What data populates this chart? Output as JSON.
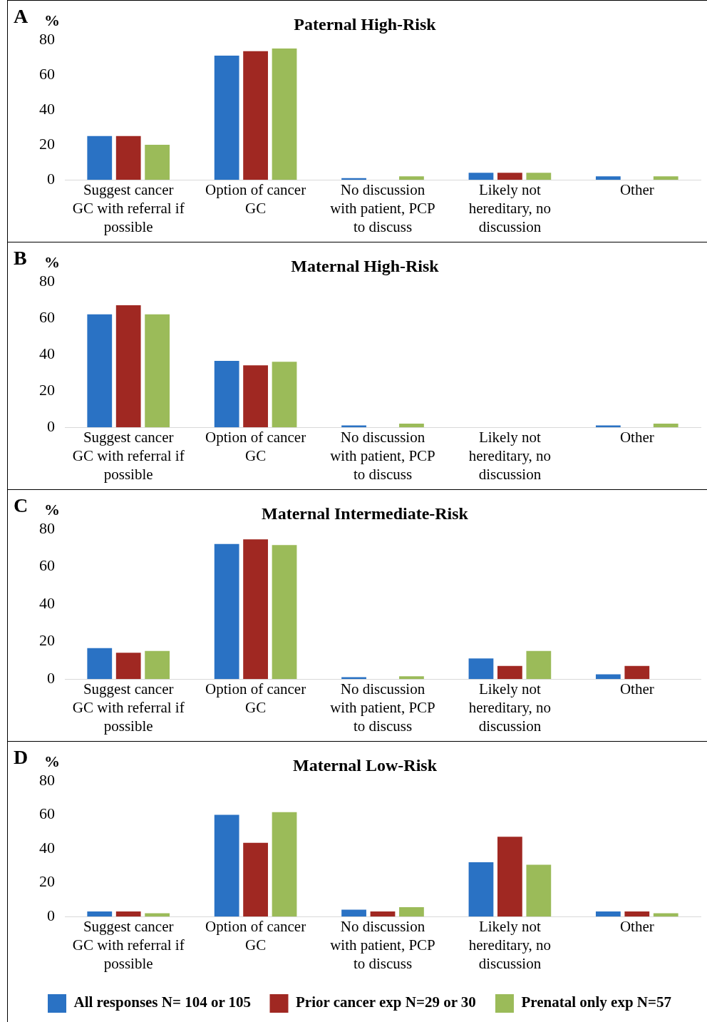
{
  "chart_data": [
    {
      "type": "bar",
      "title": "Paternal High-Risk",
      "ylabel": "%",
      "annotations": [
        "A"
      ],
      "categories": [
        "Suggest cancer GC with referral if possible",
        "Option of cancer GC",
        "No discussion with patient, PCP to discuss",
        "Likely not hereditary, no discussion",
        "Other"
      ],
      "series": [
        {
          "color": "#2a72c4",
          "values": [
            25,
            71,
            1,
            4,
            2
          ]
        },
        {
          "color": "#a02822",
          "values": [
            25,
            73.5,
            0,
            4,
            0
          ]
        },
        {
          "color": "#9bbb59",
          "values": [
            20,
            75,
            2,
            4,
            2
          ]
        }
      ],
      "ylim": [
        0,
        80
      ],
      "yticks": [
        0,
        20,
        40,
        60,
        80
      ],
      "grid": false,
      "legend": false
    },
    {
      "type": "bar",
      "title": "Maternal High-Risk",
      "ylabel": "%",
      "annotations": [
        "B"
      ],
      "categories": [
        "Suggest cancer GC with referral if possible",
        "Option of cancer GC",
        "No discussion with patient, PCP to discuss",
        "Likely not hereditary, no discussion",
        "Other"
      ],
      "series": [
        {
          "color": "#2a72c4",
          "values": [
            62,
            36.5,
            1,
            0,
            1
          ]
        },
        {
          "color": "#a02822",
          "values": [
            67,
            34,
            0,
            0,
            0
          ]
        },
        {
          "color": "#9bbb59",
          "values": [
            62,
            36,
            2,
            0,
            2
          ]
        }
      ],
      "ylim": [
        0,
        80
      ],
      "yticks": [
        0,
        20,
        40,
        60,
        80
      ],
      "grid": false,
      "legend": false
    },
    {
      "type": "bar",
      "title": "Maternal Intermediate-Risk",
      "ylabel": "%",
      "annotations": [
        "C"
      ],
      "categories": [
        "Suggest cancer GC with referral if possible",
        "Option of cancer GC",
        "No discussion with patient, PCP to discuss",
        "Likely not hereditary, no discussion",
        "Other"
      ],
      "series": [
        {
          "color": "#2a72c4",
          "values": [
            16.5,
            72,
            1,
            11,
            2.5
          ]
        },
        {
          "color": "#a02822",
          "values": [
            14,
            74.5,
            0,
            7,
            7
          ]
        },
        {
          "color": "#9bbb59",
          "values": [
            15,
            71.5,
            1.5,
            15,
            0
          ]
        }
      ],
      "ylim": [
        0,
        80
      ],
      "yticks": [
        0,
        20,
        40,
        60,
        80
      ],
      "grid": false,
      "legend": false
    },
    {
      "type": "bar",
      "title": "Maternal Low-Risk",
      "ylabel": "%",
      "annotations": [
        "D"
      ],
      "categories": [
        "Suggest cancer GC with referral if possible",
        "Option of cancer GC",
        "No discussion with patient, PCP to discuss",
        "Likely not hereditary, no discussion",
        "Other"
      ],
      "series": [
        {
          "name": "All responses N= 104 or 105",
          "color": "#2a72c4",
          "values": [
            3,
            60,
            4,
            32,
            3
          ]
        },
        {
          "name": "Prior cancer exp N=29 or 30",
          "color": "#a02822",
          "values": [
            3,
            43.5,
            3,
            47,
            3
          ]
        },
        {
          "name": "Prenatal only exp N=57",
          "color": "#9bbb59",
          "values": [
            2,
            61.5,
            5.5,
            30.5,
            2
          ]
        }
      ],
      "ylim": [
        0,
        80
      ],
      "yticks": [
        0,
        20,
        40,
        60,
        80
      ],
      "grid": false,
      "legend": "bottom"
    }
  ]
}
